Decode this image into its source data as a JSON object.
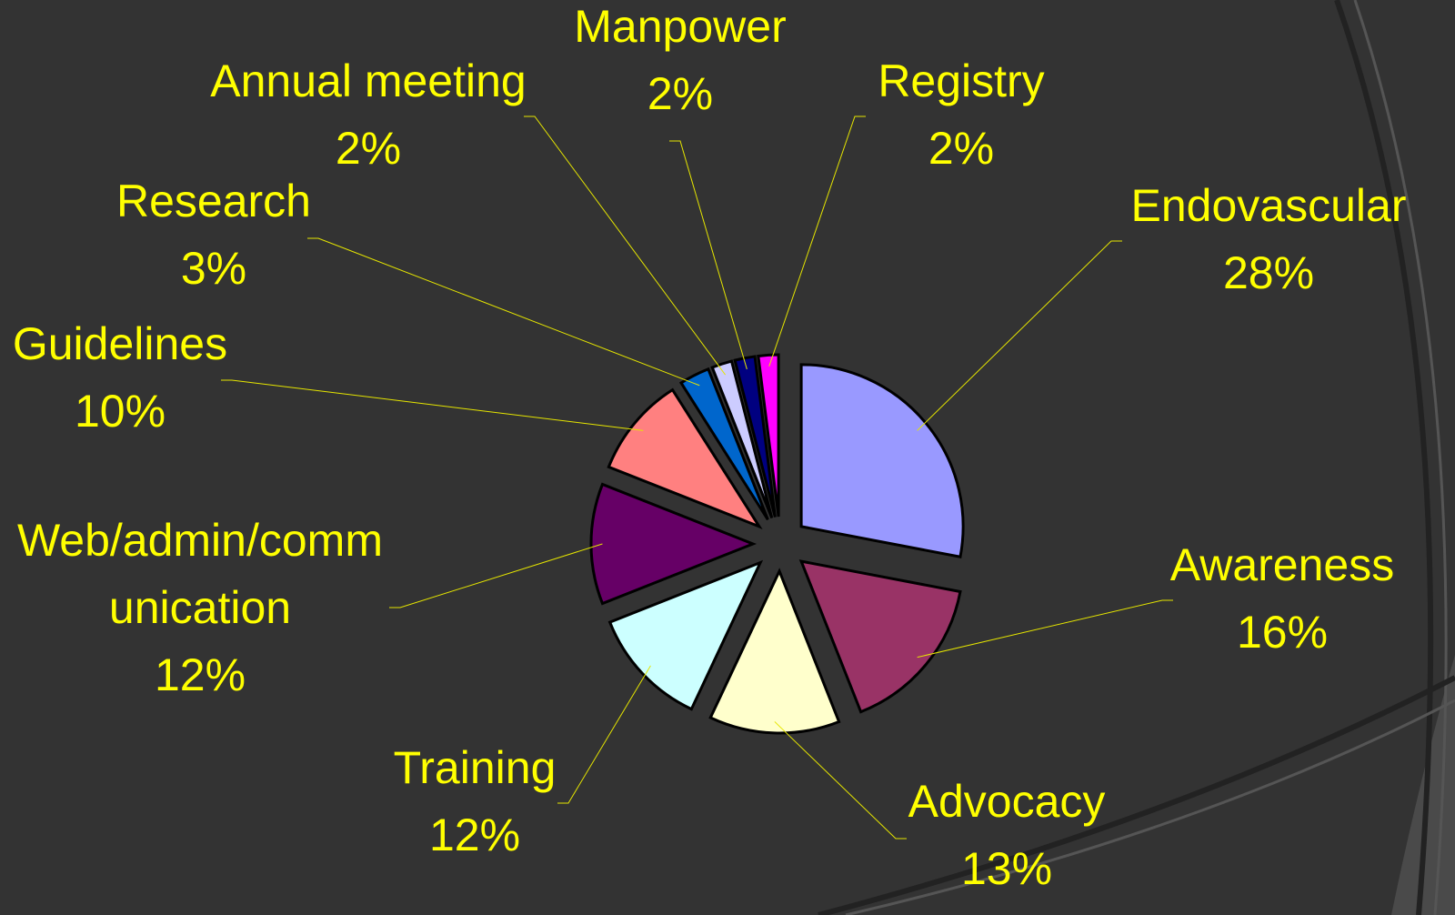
{
  "chart_data": {
    "type": "pie",
    "categories": [
      "Endovascular",
      "Awareness",
      "Advocacy",
      "Training",
      "Web/admin/communication",
      "Guidelines",
      "Research",
      "Annual meeting",
      "Manpower",
      "Registry"
    ],
    "values": [
      28,
      16,
      13,
      12,
      12,
      10,
      3,
      2,
      2,
      2
    ],
    "value_labels": [
      "28%",
      "16%",
      "13%",
      "12%",
      "12%",
      "10%",
      "3%",
      "2%",
      "2%",
      "2%"
    ],
    "colors": [
      "#9999ff",
      "#993366",
      "#ffffcc",
      "#ccffff",
      "#660066",
      "#ff8080",
      "#0066cc",
      "#ccccff",
      "#000080",
      "#ff00ff"
    ]
  }
}
